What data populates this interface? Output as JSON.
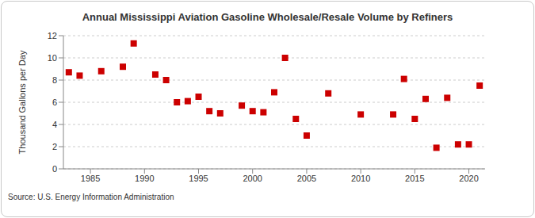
{
  "chart_data": {
    "type": "scatter",
    "title": "Annual Mississippi Aviation Gasoline Wholesale/Resale Volume by Refiners",
    "y_label": "Thousand Gallons per Day",
    "source": "Source: U.S. Energy Information Administration",
    "x": [
      1983,
      1984,
      1986,
      1988,
      1989,
      1991,
      1992,
      1993,
      1994,
      1995,
      1996,
      1997,
      1999,
      2000,
      2001,
      2002,
      2003,
      2004,
      2005,
      2007,
      2010,
      2013,
      2014,
      2015,
      2016,
      2017,
      2018,
      2019,
      2020,
      2021
    ],
    "values": [
      8.7,
      8.4,
      8.8,
      9.2,
      11.3,
      8.5,
      8.0,
      6.0,
      6.1,
      6.5,
      5.2,
      5.0,
      5.7,
      5.2,
      5.1,
      6.9,
      10.0,
      4.5,
      3.0,
      6.8,
      4.9,
      4.9,
      8.1,
      4.5,
      6.3,
      1.9,
      6.4,
      2.2,
      2.2,
      7.5
    ],
    "color": "#cc0000",
    "marker": "square",
    "xlim": [
      1982.5,
      2021.5
    ],
    "xticks": [
      1985,
      1990,
      1995,
      2000,
      2005,
      2010,
      2015,
      2020
    ],
    "ylim": [
      0,
      12
    ],
    "yticks": [
      0,
      2,
      4,
      6,
      8,
      10,
      12
    ],
    "grid": true
  }
}
